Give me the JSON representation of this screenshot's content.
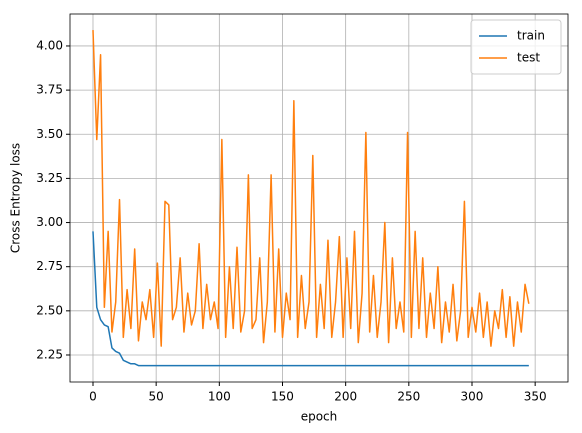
{
  "chart_data": {
    "type": "line",
    "xlabel": "epoch",
    "ylabel": "Cross Entropy loss",
    "x": [
      0,
      3,
      6,
      9,
      12,
      15,
      18,
      21,
      24,
      27,
      30,
      33,
      36,
      39,
      42,
      45,
      48,
      51,
      54,
      57,
      60,
      63,
      66,
      69,
      72,
      75,
      78,
      81,
      84,
      87,
      90,
      93,
      96,
      99,
      102,
      105,
      108,
      111,
      114,
      117,
      120,
      123,
      126,
      129,
      132,
      135,
      138,
      141,
      144,
      147,
      150,
      153,
      156,
      159,
      162,
      165,
      168,
      171,
      174,
      177,
      180,
      183,
      186,
      189,
      192,
      195,
      198,
      201,
      204,
      207,
      210,
      213,
      216,
      219,
      222,
      225,
      228,
      231,
      234,
      237,
      240,
      243,
      246,
      249,
      252,
      255,
      258,
      261,
      264,
      267,
      270,
      273,
      276,
      279,
      282,
      285,
      288,
      291,
      294,
      297,
      300,
      303,
      306,
      309,
      312,
      315,
      318,
      321,
      324,
      327,
      330,
      333,
      336,
      339,
      342,
      345
    ],
    "series": [
      {
        "name": "train",
        "color": "#1f77b4",
        "values": [
          2.95,
          2.52,
          2.45,
          2.42,
          2.41,
          2.29,
          2.27,
          2.26,
          2.22,
          2.21,
          2.2,
          2.2,
          2.19,
          2.19,
          2.19,
          2.19,
          2.19,
          2.19,
          2.19,
          2.19,
          2.19,
          2.19,
          2.19,
          2.19,
          2.19,
          2.19,
          2.19,
          2.19,
          2.19,
          2.19,
          2.19,
          2.19,
          2.19,
          2.19,
          2.19,
          2.19,
          2.19,
          2.19,
          2.19,
          2.19,
          2.19,
          2.19,
          2.19,
          2.19,
          2.19,
          2.19,
          2.19,
          2.19,
          2.19,
          2.19,
          2.19,
          2.19,
          2.19,
          2.19,
          2.19,
          2.19,
          2.19,
          2.19,
          2.19,
          2.19,
          2.19,
          2.19,
          2.19,
          2.19,
          2.19,
          2.19,
          2.19,
          2.19,
          2.19,
          2.19,
          2.19,
          2.19,
          2.19,
          2.19,
          2.19,
          2.19,
          2.19,
          2.19,
          2.19,
          2.19,
          2.19,
          2.19,
          2.19,
          2.19,
          2.19,
          2.19,
          2.19,
          2.19,
          2.19,
          2.19,
          2.19,
          2.19,
          2.19,
          2.19,
          2.19,
          2.19,
          2.19,
          2.19,
          2.19,
          2.19,
          2.19,
          2.19,
          2.19,
          2.19,
          2.19,
          2.19,
          2.19,
          2.19,
          2.19,
          2.19,
          2.19,
          2.19,
          2.19,
          2.19,
          2.19,
          2.19
        ]
      },
      {
        "name": "test",
        "color": "#ff7f0e",
        "values": [
          4.09,
          3.47,
          3.95,
          2.52,
          2.95,
          2.38,
          2.55,
          3.13,
          2.35,
          2.62,
          2.4,
          2.85,
          2.33,
          2.55,
          2.45,
          2.62,
          2.35,
          2.77,
          2.3,
          3.12,
          3.1,
          2.45,
          2.52,
          2.8,
          2.38,
          2.6,
          2.42,
          2.5,
          2.88,
          2.4,
          2.65,
          2.45,
          2.55,
          2.4,
          3.47,
          2.35,
          2.75,
          2.4,
          2.86,
          2.38,
          2.5,
          3.27,
          2.4,
          2.45,
          2.8,
          2.32,
          2.55,
          3.27,
          2.38,
          2.85,
          2.35,
          2.6,
          2.45,
          3.69,
          2.35,
          2.7,
          2.4,
          2.55,
          3.38,
          2.35,
          2.65,
          2.4,
          2.9,
          2.35,
          2.55,
          2.92,
          2.35,
          2.8,
          2.4,
          2.95,
          2.32,
          2.6,
          3.51,
          2.38,
          2.7,
          2.35,
          2.55,
          3.0,
          2.32,
          2.8,
          2.4,
          2.55,
          2.38,
          3.51,
          2.35,
          2.95,
          2.4,
          2.8,
          2.35,
          2.6,
          2.4,
          2.75,
          2.32,
          2.55,
          2.38,
          2.65,
          2.33,
          2.5,
          3.12,
          2.35,
          2.52,
          2.38,
          2.6,
          2.35,
          2.55,
          2.3,
          2.5,
          2.4,
          2.62,
          2.35,
          2.58,
          2.3,
          2.55,
          2.38,
          2.65,
          2.54
        ]
      }
    ],
    "xlim": [
      -18.2,
      376
    ],
    "ylim": [
      2.097,
      4.181
    ],
    "xticks": [
      0,
      50,
      100,
      150,
      200,
      250,
      300,
      350
    ],
    "yticks": [
      2.25,
      {
        "value": 2.5,
        "label": "2.50"
      },
      2.75,
      {
        "value": 3,
        "label": "3.00"
      },
      3.25,
      {
        "value": 3.5,
        "label": "3.50"
      },
      3.75,
      {
        "value": 4,
        "label": "4.00"
      }
    ],
    "grid": true,
    "legend": "upper right"
  }
}
